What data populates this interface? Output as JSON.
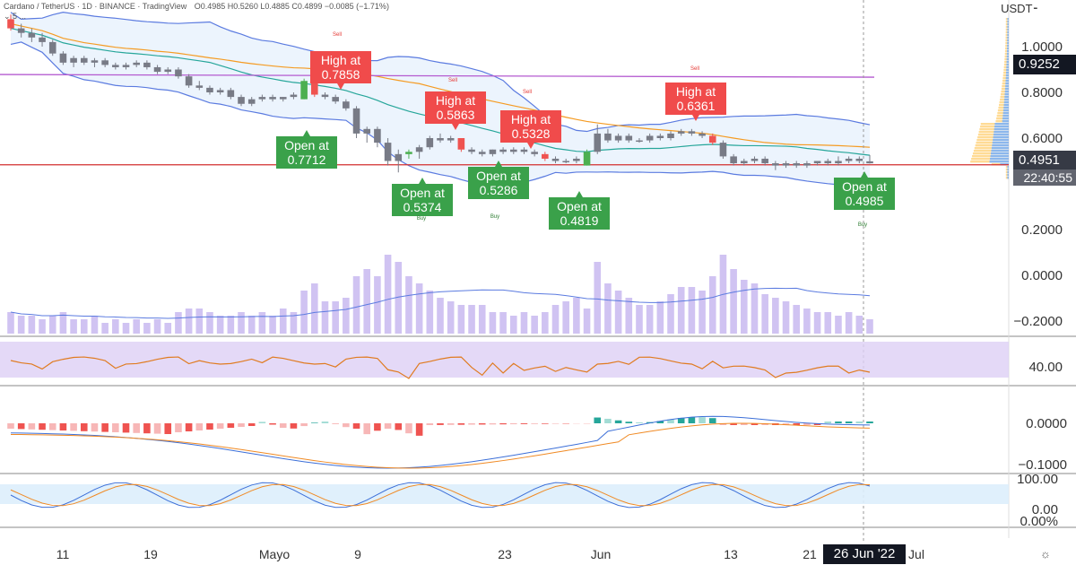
{
  "header": {
    "symbol": "Cardano / TetherUS · 1D · BINANCE · TradingView",
    "ohlc": "O0.4985 H0.5260 L0.4885 C0.4899 −0.0085 (−1.71%)",
    "indicator": "⌄ 5 ..."
  },
  "price_axis": {
    "unit": "USDT⁃",
    "ticks": [
      "1.0000",
      "0.8000",
      "0.6000",
      "0.2000",
      "0.0000",
      "−0.2000"
    ],
    "ref_price_label": "0.9252",
    "last_price_label": "0.4951",
    "countdown": "22:40:55"
  },
  "x_axis": {
    "labels": [
      "11",
      "19",
      "Mayo",
      "9",
      "23",
      "Jun",
      "13",
      "21",
      "Jul"
    ],
    "crosshair_date": "26 Jun '22"
  },
  "rsi_axis": {
    "ticks": [
      "40.00"
    ]
  },
  "macd_axis": {
    "ticks": [
      "0.0000",
      "−0.1000"
    ]
  },
  "stoch_axis": {
    "ticks": [
      "100.00",
      "0.00",
      "0.00%"
    ]
  },
  "signal_labels": [
    {
      "kind": "high",
      "text": [
        "High at",
        "0.7858"
      ]
    },
    {
      "kind": "high",
      "text": [
        "High at",
        "0.5863"
      ]
    },
    {
      "kind": "high",
      "text": [
        "High at",
        "0.5328"
      ]
    },
    {
      "kind": "high",
      "text": [
        "High at",
        "0.6361"
      ]
    },
    {
      "kind": "open",
      "text": [
        "Open at",
        "0.7712"
      ]
    },
    {
      "kind": "open",
      "text": [
        "Open at",
        "0.5374"
      ]
    },
    {
      "kind": "open",
      "text": [
        "Open at",
        "0.5286"
      ]
    },
    {
      "kind": "open",
      "text": [
        "Open at",
        "0.4819"
      ]
    },
    {
      "kind": "open",
      "text": [
        "Open at",
        "0.4985"
      ]
    }
  ],
  "small_signals": [
    "Sell",
    "Sell",
    "Sell",
    "Sell",
    "Buy",
    "Buy",
    "Buy"
  ],
  "colors": {
    "up": "#4caf50",
    "down": "#ef5350",
    "neutral": "#787b86",
    "bb": "#5b7be0",
    "ma_fast": "#26a69a",
    "ma_slow": "#f59b22",
    "volume": "#c8b8f0",
    "rsi_bg": "#ddd0f5",
    "rsi_line": "#e07b20",
    "macd_pos": "#26a69a",
    "macd_neg": "#ef5350",
    "stoch_bg": "#ddeefc"
  },
  "chart_data": {
    "type": "candlestick",
    "title": "Cardano / TetherUS · 1D · BINANCE",
    "ylim": [
      0.37,
      1.05
    ],
    "series": [
      {
        "name": "ADA/USDT",
        "values": [
          [
            1.12,
            1.14,
            1.07,
            1.08
          ],
          [
            1.08,
            1.1,
            1.04,
            1.06
          ],
          [
            1.06,
            1.08,
            1.02,
            1.04
          ],
          [
            1.04,
            1.06,
            1.0,
            1.02
          ],
          [
            1.02,
            1.03,
            0.96,
            0.97
          ],
          [
            0.97,
            0.98,
            0.92,
            0.93
          ],
          [
            0.93,
            0.96,
            0.91,
            0.95
          ],
          [
            0.95,
            0.96,
            0.92,
            0.93
          ],
          [
            0.93,
            0.95,
            0.91,
            0.94
          ],
          [
            0.94,
            0.95,
            0.91,
            0.92
          ],
          [
            0.92,
            0.93,
            0.9,
            0.91
          ],
          [
            0.91,
            0.93,
            0.9,
            0.92
          ],
          [
            0.92,
            0.94,
            0.91,
            0.93
          ],
          [
            0.93,
            0.94,
            0.9,
            0.91
          ],
          [
            0.91,
            0.92,
            0.88,
            0.89
          ],
          [
            0.89,
            0.91,
            0.88,
            0.9
          ],
          [
            0.9,
            0.91,
            0.86,
            0.87
          ],
          [
            0.87,
            0.88,
            0.82,
            0.83
          ],
          [
            0.83,
            0.85,
            0.81,
            0.82
          ],
          [
            0.82,
            0.83,
            0.79,
            0.8
          ],
          [
            0.8,
            0.82,
            0.79,
            0.81
          ],
          [
            0.81,
            0.82,
            0.77,
            0.78
          ],
          [
            0.78,
            0.79,
            0.74,
            0.75
          ],
          [
            0.75,
            0.78,
            0.74,
            0.77
          ],
          [
            0.77,
            0.79,
            0.76,
            0.78
          ],
          [
            0.78,
            0.79,
            0.76,
            0.77
          ],
          [
            0.77,
            0.78,
            0.76,
            0.78
          ],
          [
            0.78,
            0.8,
            0.77,
            0.79
          ],
          [
            0.77,
            0.86,
            0.77,
            0.85
          ],
          [
            0.85,
            0.87,
            0.78,
            0.79
          ],
          [
            0.79,
            0.8,
            0.77,
            0.78
          ],
          [
            0.78,
            0.79,
            0.75,
            0.76
          ],
          [
            0.76,
            0.77,
            0.72,
            0.73
          ],
          [
            0.73,
            0.74,
            0.6,
            0.62
          ],
          [
            0.62,
            0.65,
            0.58,
            0.64
          ],
          [
            0.64,
            0.65,
            0.56,
            0.58
          ],
          [
            0.58,
            0.6,
            0.48,
            0.5
          ],
          [
            0.5,
            0.55,
            0.45,
            0.53
          ],
          [
            0.53,
            0.55,
            0.51,
            0.54
          ],
          [
            0.54,
            0.57,
            0.51,
            0.56
          ],
          [
            0.56,
            0.61,
            0.55,
            0.6
          ],
          [
            0.6,
            0.62,
            0.58,
            0.59
          ],
          [
            0.59,
            0.61,
            0.58,
            0.6
          ],
          [
            0.6,
            0.6,
            0.54,
            0.55
          ],
          [
            0.55,
            0.56,
            0.53,
            0.54
          ],
          [
            0.54,
            0.55,
            0.52,
            0.53
          ],
          [
            0.53,
            0.55,
            0.52,
            0.55
          ],
          [
            0.55,
            0.56,
            0.53,
            0.54
          ],
          [
            0.54,
            0.56,
            0.53,
            0.55
          ],
          [
            0.55,
            0.56,
            0.53,
            0.54
          ],
          [
            0.54,
            0.55,
            0.52,
            0.53
          ],
          [
            0.53,
            0.54,
            0.5,
            0.51
          ],
          [
            0.51,
            0.52,
            0.49,
            0.5
          ],
          [
            0.5,
            0.51,
            0.49,
            0.5
          ],
          [
            0.5,
            0.52,
            0.49,
            0.51
          ],
          [
            0.48,
            0.55,
            0.48,
            0.54
          ],
          [
            0.54,
            0.66,
            0.53,
            0.62
          ],
          [
            0.62,
            0.64,
            0.58,
            0.59
          ],
          [
            0.59,
            0.62,
            0.58,
            0.61
          ],
          [
            0.61,
            0.62,
            0.58,
            0.59
          ],
          [
            0.59,
            0.6,
            0.58,
            0.59
          ],
          [
            0.59,
            0.62,
            0.58,
            0.61
          ],
          [
            0.61,
            0.62,
            0.59,
            0.6
          ],
          [
            0.6,
            0.63,
            0.59,
            0.62
          ],
          [
            0.62,
            0.64,
            0.61,
            0.63
          ],
          [
            0.63,
            0.64,
            0.61,
            0.62
          ],
          [
            0.62,
            0.63,
            0.6,
            0.61
          ],
          [
            0.61,
            0.62,
            0.57,
            0.58
          ],
          [
            0.58,
            0.59,
            0.51,
            0.52
          ],
          [
            0.52,
            0.53,
            0.48,
            0.49
          ],
          [
            0.49,
            0.51,
            0.48,
            0.5
          ],
          [
            0.5,
            0.52,
            0.49,
            0.51
          ],
          [
            0.51,
            0.52,
            0.48,
            0.49
          ],
          [
            0.49,
            0.5,
            0.46,
            0.48
          ],
          [
            0.48,
            0.5,
            0.47,
            0.49
          ],
          [
            0.49,
            0.5,
            0.47,
            0.48
          ],
          [
            0.48,
            0.5,
            0.47,
            0.49
          ],
          [
            0.49,
            0.5,
            0.48,
            0.5
          ],
          [
            0.5,
            0.51,
            0.48,
            0.49
          ],
          [
            0.49,
            0.52,
            0.48,
            0.5
          ],
          [
            0.5,
            0.52,
            0.49,
            0.51
          ],
          [
            0.51,
            0.52,
            0.49,
            0.5
          ],
          [
            0.4985,
            0.526,
            0.4885,
            0.4899
          ]
        ]
      }
    ],
    "volume": [
      0.6,
      0.5,
      0.5,
      0.4,
      0.5,
      0.6,
      0.4,
      0.4,
      0.5,
      0.3,
      0.4,
      0.3,
      0.4,
      0.3,
      0.4,
      0.3,
      0.6,
      0.7,
      0.7,
      0.6,
      0.5,
      0.5,
      0.6,
      0.5,
      0.6,
      0.5,
      0.7,
      0.6,
      1.2,
      1.4,
      0.9,
      0.9,
      1.0,
      1.6,
      1.8,
      1.6,
      2.2,
      2.0,
      1.6,
      1.4,
      1.2,
      1.0,
      0.9,
      0.8,
      0.8,
      0.8,
      0.6,
      0.6,
      0.5,
      0.6,
      0.5,
      0.6,
      0.8,
      0.9,
      1.0,
      0.7,
      2.0,
      1.4,
      1.2,
      1.0,
      0.8,
      0.8,
      0.9,
      1.1,
      1.3,
      1.3,
      1.2,
      1.6,
      2.2,
      1.8,
      1.5,
      1.4,
      1.1,
      1.0,
      0.9,
      0.8,
      0.7,
      0.6,
      0.6,
      0.5,
      0.6,
      0.5,
      0.4
    ]
  }
}
